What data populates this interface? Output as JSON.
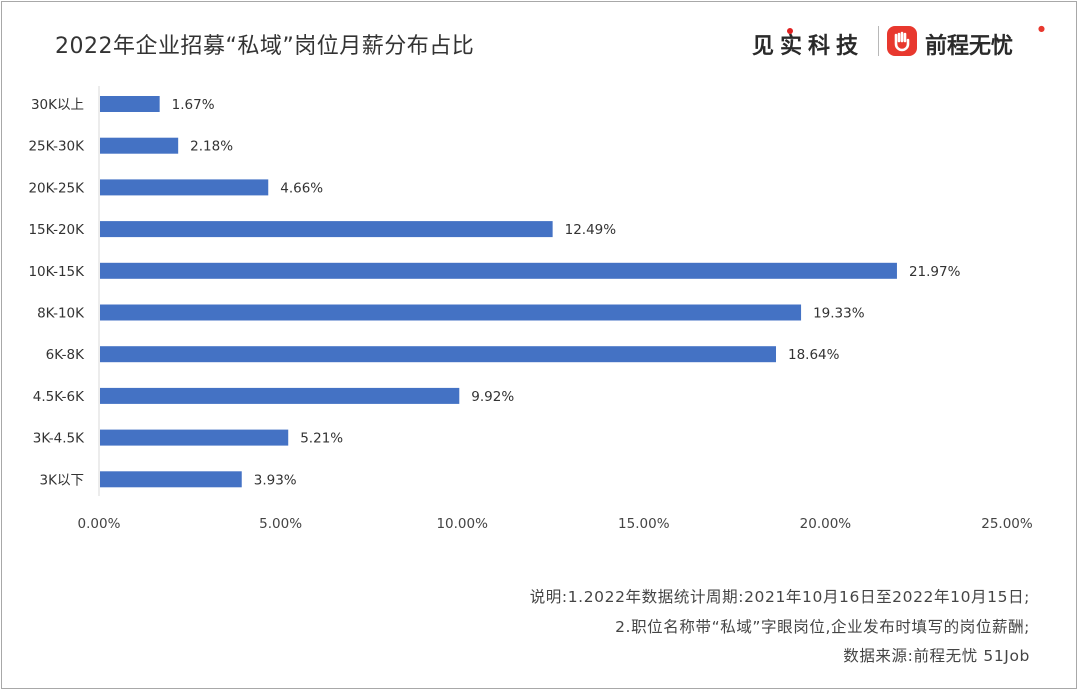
{
  "title": "2022年企业招募“私域”岗位月薪分布占比",
  "brand": {
    "left_name": "见实科技",
    "right_name": "前程无忧"
  },
  "colors": {
    "bar": "#4472c4",
    "text": "#333333",
    "logo": "#e8382e"
  },
  "chart_data": {
    "type": "bar",
    "orientation": "horizontal",
    "categories": [
      "30K以上",
      "25K-30K",
      "20K-25K",
      "15K-20K",
      "10K-15K",
      "8K-10K",
      "6K-8K",
      "4.5K-6K",
      "3K-4.5K",
      "3K以下"
    ],
    "values": [
      1.67,
      2.18,
      4.66,
      12.49,
      21.97,
      19.33,
      18.64,
      9.92,
      5.21,
      3.93
    ],
    "value_labels": [
      "1.67%",
      "2.18%",
      "4.66%",
      "12.49%",
      "21.97%",
      "19.33%",
      "18.64%",
      "9.92%",
      "5.21%",
      "3.93%"
    ],
    "xlim": [
      0,
      25
    ],
    "x_ticks": [
      0,
      5,
      10,
      15,
      20,
      25
    ],
    "x_tick_labels": [
      "0.00%",
      "5.00%",
      "10.00%",
      "15.00%",
      "20.00%",
      "25.00%"
    ],
    "grid": false,
    "legend": "none"
  },
  "notes": {
    "line1": "说明:1.2022年数据统计周期:2021年10月16日至2022年10月15日;",
    "line2": "2.职位名称带“私域”字眼岗位,企业发布时填写的岗位薪酬;",
    "line3": "数据来源:前程无忧 51Job"
  }
}
